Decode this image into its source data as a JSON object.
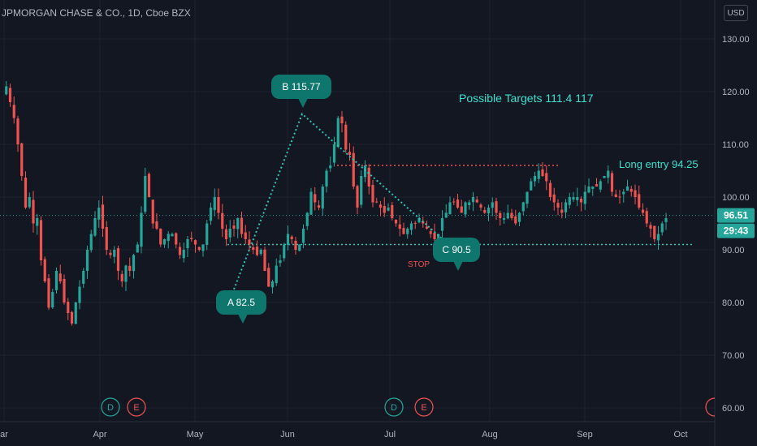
{
  "header": {
    "title": "JPMORGAN CHASE & CO., 1D, Cboe BZX"
  },
  "currency_label": "USD",
  "price": {
    "last": "96.51",
    "countdown": "29:43"
  },
  "colors": {
    "bg": "#131722",
    "grid": "#1e222d",
    "up": "#26a69a",
    "down": "#ef5350",
    "teal_line": "#2ec4b6",
    "callout": "#0f766e",
    "axis_text": "#b2b5be",
    "target_text": "#3ee0cf",
    "red_dotted": "#ef5350"
  },
  "events": [
    {
      "label": "D",
      "type": "dividend",
      "color": "#26a69a"
    },
    {
      "label": "E",
      "type": "earnings",
      "color": "#ef5350"
    },
    {
      "label": "D",
      "type": "dividend",
      "color": "#26a69a"
    },
    {
      "label": "E",
      "type": "earnings",
      "color": "#ef5350"
    }
  ],
  "annotations": {
    "point_a": "A 82.5",
    "point_b": "B  115.77",
    "point_c": "C 90.5",
    "targets": "Possible Targets  111.4   117",
    "long_entry": "Long entry  94.25",
    "stop": "STOP"
  },
  "chart_data": {
    "type": "candlestick",
    "title": "JPMORGAN CHASE & CO., 1D, Cboe BZX",
    "y_axis": {
      "ticks": [
        60,
        70,
        80,
        90,
        100,
        110,
        120,
        130
      ],
      "labels": [
        "60.00",
        "70.00",
        "80.00",
        "90.00",
        "100.00",
        "110.00",
        "120.00",
        "130.00"
      ],
      "range": [
        57,
        135
      ]
    },
    "x_axis": {
      "labels": [
        "ar",
        "Apr",
        "May",
        "Jun",
        "Jul",
        "Aug",
        "Sep",
        "Oct"
      ]
    },
    "grid": true,
    "pattern_points": {
      "A": 82.5,
      "B": 115.77,
      "C": 90.5
    },
    "targets": [
      111.4,
      117
    ],
    "long_entry": 94.25,
    "resistance_level": 106,
    "support_level": 91,
    "last_price": 96.51,
    "closes": [
      119.5,
      121,
      118,
      115,
      110,
      104,
      98,
      100,
      95,
      96,
      88,
      84,
      79,
      82,
      86,
      84,
      80,
      78,
      76,
      80,
      83,
      86,
      90,
      93,
      96,
      98,
      94,
      90,
      89,
      90,
      86,
      84,
      87,
      86,
      89,
      91,
      97,
      104,
      100,
      95,
      94,
      91,
      92,
      93,
      93,
      91,
      89,
      90,
      92,
      92,
      91,
      90,
      91,
      95,
      98,
      100,
      97,
      94,
      92,
      94,
      94,
      96,
      93,
      92,
      91,
      90,
      89,
      90,
      86,
      83,
      84,
      87,
      88,
      91,
      93,
      92,
      90,
      91,
      94,
      97,
      101,
      99,
      98,
      102,
      105,
      106,
      110,
      115,
      114,
      109,
      108,
      102,
      98,
      104,
      106,
      102,
      99,
      99,
      98,
      97,
      98,
      96,
      95,
      94,
      93,
      94,
      95,
      95,
      96,
      95,
      94,
      93,
      92,
      93,
      96,
      97,
      99,
      99,
      98,
      97,
      99,
      99,
      100,
      99,
      98,
      97,
      98,
      99,
      97,
      96,
      96,
      97,
      96,
      95,
      97,
      99,
      101,
      103,
      104,
      105,
      104,
      103,
      100,
      99,
      98,
      97,
      99,
      100,
      100,
      100,
      99,
      101,
      102,
      102,
      102,
      103,
      104,
      105,
      101,
      100,
      100,
      101,
      102,
      101,
      100,
      98,
      97,
      95,
      94,
      92,
      93,
      95,
      96
    ]
  }
}
